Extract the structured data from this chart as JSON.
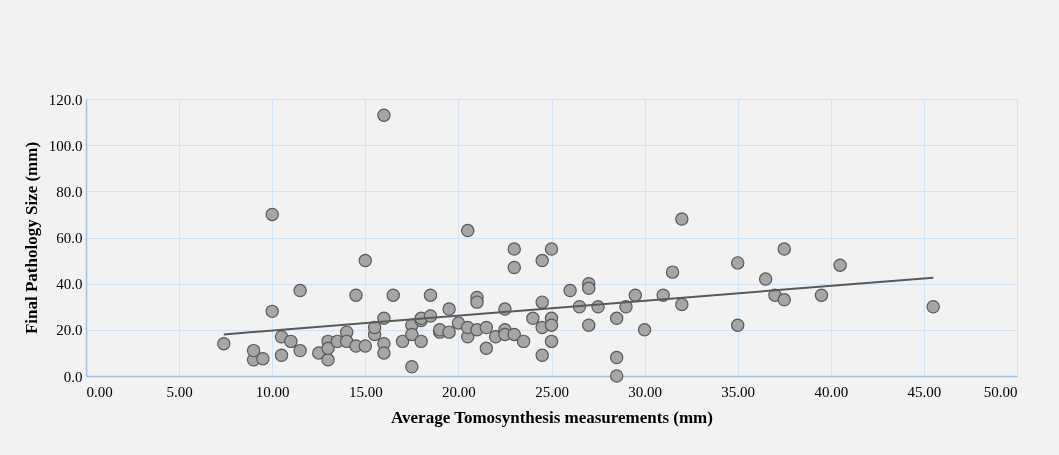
{
  "chart_data": {
    "type": "scatter",
    "xlabel": "Average Tomosynthesis measurements (mm)",
    "ylabel": "Final Pathology Size (mm)",
    "xlim": [
      0,
      50
    ],
    "ylim": [
      0,
      120
    ],
    "xticks": [
      {
        "value": 0,
        "label": "0.00"
      },
      {
        "value": 5,
        "label": "5.00"
      },
      {
        "value": 10,
        "label": "10.00"
      },
      {
        "value": 15,
        "label": "15.00"
      },
      {
        "value": 20,
        "label": "20.00"
      },
      {
        "value": 25,
        "label": "25.00"
      },
      {
        "value": 30,
        "label": "30.00"
      },
      {
        "value": 35,
        "label": "35.00"
      },
      {
        "value": 40,
        "label": "40.00"
      },
      {
        "value": 45,
        "label": "45.00"
      },
      {
        "value": 50,
        "label": "50.00"
      }
    ],
    "yticks": [
      {
        "value": 0,
        "label": "0.0"
      },
      {
        "value": 20,
        "label": "20.0"
      },
      {
        "value": 40,
        "label": "40.0"
      },
      {
        "value": 60,
        "label": "60.0"
      },
      {
        "value": 80,
        "label": "80.0"
      },
      {
        "value": 100,
        "label": "100.0"
      },
      {
        "value": 120,
        "label": "120.0"
      }
    ],
    "grid": true,
    "marker": "circle",
    "series": [
      {
        "color": "#a6a6a6",
        "x": [
          7.4,
          9,
          9,
          9.5,
          10,
          10,
          10.5,
          10.5,
          11,
          11.5,
          11.5,
          12.5,
          13,
          13,
          13,
          13.5,
          14,
          14,
          14.5,
          14.5,
          15,
          15,
          15.5,
          15.5,
          16,
          16,
          16,
          16,
          16.5,
          17,
          17.5,
          17.5,
          17.5,
          18,
          18,
          18,
          18.5,
          18.5,
          19,
          19,
          19.5,
          19.5,
          20,
          20.5,
          20.5,
          20.5,
          21,
          21,
          21,
          21.5,
          21.5,
          22,
          22.5,
          22.5,
          22.5,
          23,
          23,
          23,
          23.5,
          24,
          24.5,
          24.5,
          24.5,
          24.5,
          25,
          25,
          25,
          25,
          26,
          26.5,
          27,
          27,
          27,
          27.5,
          28.5,
          28.5,
          28.5,
          29,
          29.5,
          30,
          31,
          31.5,
          32,
          32,
          35,
          35,
          36.5,
          37,
          37.5,
          37.5,
          39.5,
          40.5,
          45.5
        ],
        "values": [
          14,
          7,
          11,
          7.5,
          28,
          70,
          17,
          9,
          15,
          37,
          11,
          10,
          15,
          7,
          12,
          15,
          19,
          15,
          35,
          13,
          13,
          50,
          18,
          21,
          14,
          25,
          10,
          113,
          35,
          15,
          4,
          22,
          18,
          24,
          15,
          25,
          35,
          26,
          19,
          20,
          29,
          19,
          23,
          63,
          17,
          21,
          34,
          32,
          20,
          12,
          21,
          17,
          29,
          20,
          18,
          55,
          47,
          18,
          15,
          25,
          50,
          32,
          21,
          9,
          55,
          25,
          22,
          15,
          37,
          30,
          40,
          38,
          22,
          30,
          25,
          8,
          0,
          30,
          35,
          20,
          35,
          45,
          68,
          31,
          49,
          22,
          42,
          35,
          55,
          33,
          35,
          48,
          30
        ]
      },
      {
        "type": "line",
        "color": "#595959",
        "marker": "none",
        "line_style": "solid",
        "x": [
          7.4,
          45.5
        ],
        "values": [
          18,
          42.6
        ]
      }
    ]
  }
}
